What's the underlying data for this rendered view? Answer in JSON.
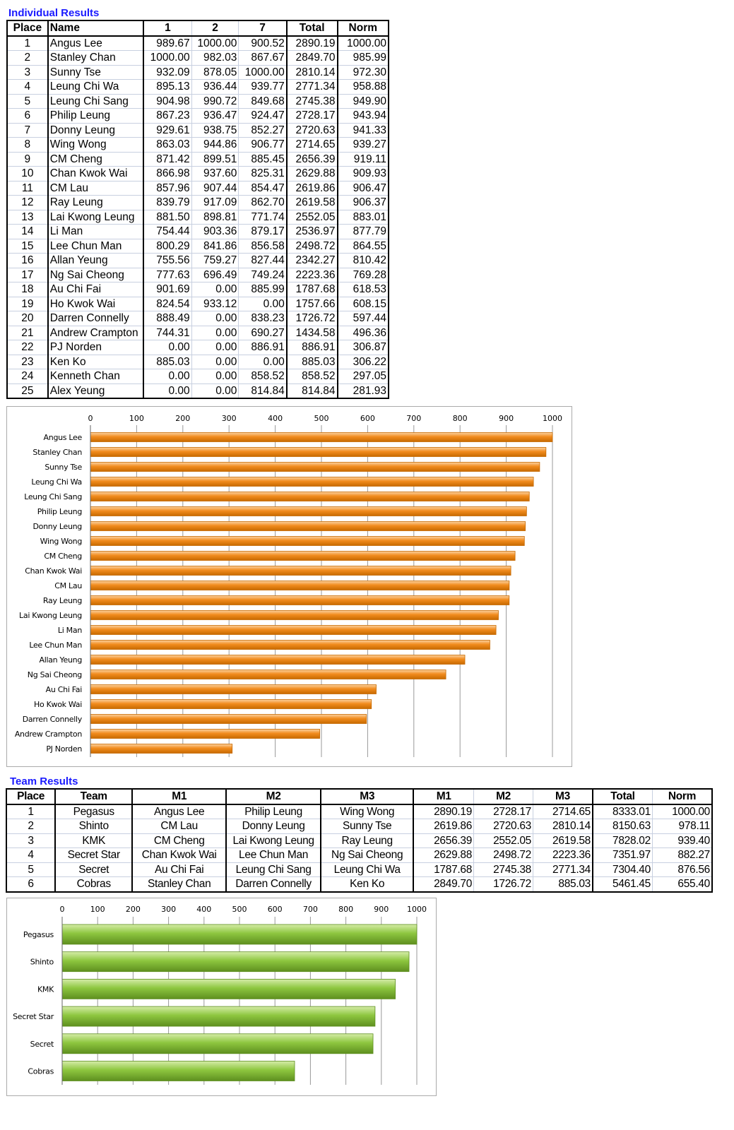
{
  "individual": {
    "title": "Individual Results",
    "headers": [
      "Place",
      "Name",
      "1",
      "2",
      "7",
      "Total",
      "Norm"
    ],
    "rows": [
      [
        "1",
        "Angus Lee",
        "989.67",
        "1000.00",
        "900.52",
        "2890.19",
        "1000.00"
      ],
      [
        "2",
        "Stanley Chan",
        "1000.00",
        "982.03",
        "867.67",
        "2849.70",
        "985.99"
      ],
      [
        "3",
        "Sunny Tse",
        "932.09",
        "878.05",
        "1000.00",
        "2810.14",
        "972.30"
      ],
      [
        "4",
        "Leung Chi Wa",
        "895.13",
        "936.44",
        "939.77",
        "2771.34",
        "958.88"
      ],
      [
        "5",
        "Leung Chi Sang",
        "904.98",
        "990.72",
        "849.68",
        "2745.38",
        "949.90"
      ],
      [
        "6",
        "Philip Leung",
        "867.23",
        "936.47",
        "924.47",
        "2728.17",
        "943.94"
      ],
      [
        "7",
        "Donny Leung",
        "929.61",
        "938.75",
        "852.27",
        "2720.63",
        "941.33"
      ],
      [
        "8",
        "Wing Wong",
        "863.03",
        "944.86",
        "906.77",
        "2714.65",
        "939.27"
      ],
      [
        "9",
        "CM Cheng",
        "871.42",
        "899.51",
        "885.45",
        "2656.39",
        "919.11"
      ],
      [
        "10",
        "Chan Kwok Wai",
        "866.98",
        "937.60",
        "825.31",
        "2629.88",
        "909.93"
      ],
      [
        "11",
        "CM Lau",
        "857.96",
        "907.44",
        "854.47",
        "2619.86",
        "906.47"
      ],
      [
        "12",
        "Ray Leung",
        "839.79",
        "917.09",
        "862.70",
        "2619.58",
        "906.37"
      ],
      [
        "13",
        "Lai Kwong Leung",
        "881.50",
        "898.81",
        "771.74",
        "2552.05",
        "883.01"
      ],
      [
        "14",
        "Li Man",
        "754.44",
        "903.36",
        "879.17",
        "2536.97",
        "877.79"
      ],
      [
        "15",
        "Lee Chun Man",
        "800.29",
        "841.86",
        "856.58",
        "2498.72",
        "864.55"
      ],
      [
        "16",
        "Allan Yeung",
        "755.56",
        "759.27",
        "827.44",
        "2342.27",
        "810.42"
      ],
      [
        "17",
        "Ng Sai Cheong",
        "777.63",
        "696.49",
        "749.24",
        "2223.36",
        "769.28"
      ],
      [
        "18",
        "Au Chi Fai",
        "901.69",
        "0.00",
        "885.99",
        "1787.68",
        "618.53"
      ],
      [
        "19",
        "Ho Kwok Wai",
        "824.54",
        "933.12",
        "0.00",
        "1757.66",
        "608.15"
      ],
      [
        "20",
        "Darren Connelly",
        "888.49",
        "0.00",
        "838.23",
        "1726.72",
        "597.44"
      ],
      [
        "21",
        "Andrew Crampton",
        "744.31",
        "0.00",
        "690.27",
        "1434.58",
        "496.36"
      ],
      [
        "22",
        "PJ Norden",
        "0.00",
        "0.00",
        "886.91",
        "886.91",
        "306.87"
      ],
      [
        "23",
        "Ken Ko",
        "885.03",
        "0.00",
        "0.00",
        "885.03",
        "306.22"
      ],
      [
        "24",
        "Kenneth Chan",
        "0.00",
        "0.00",
        "858.52",
        "858.52",
        "297.05"
      ],
      [
        "25",
        "Alex Yeung",
        "0.00",
        "0.00",
        "814.84",
        "814.84",
        "281.93"
      ]
    ]
  },
  "team": {
    "title": "Team Results",
    "headers": [
      "Place",
      "Team",
      "M1",
      "M2",
      "M3",
      "M1",
      "M2",
      "M3",
      "Total",
      "Norm"
    ],
    "rows": [
      [
        "1",
        "Pegasus",
        "Angus Lee",
        "Philip Leung",
        "Wing Wong",
        "2890.19",
        "2728.17",
        "2714.65",
        "8333.01",
        "1000.00"
      ],
      [
        "2",
        "Shinto",
        "CM Lau",
        "Donny Leung",
        "Sunny Tse",
        "2619.86",
        "2720.63",
        "2810.14",
        "8150.63",
        "978.11"
      ],
      [
        "3",
        "KMK",
        "CM Cheng",
        "Lai Kwong Leung",
        "Ray Leung",
        "2656.39",
        "2552.05",
        "2619.58",
        "7828.02",
        "939.40"
      ],
      [
        "4",
        "Secret Star",
        "Chan Kwok Wai",
        "Lee Chun Man",
        "Ng Sai Cheong",
        "2629.88",
        "2498.72",
        "2223.36",
        "7351.97",
        "882.27"
      ],
      [
        "5",
        "Secret",
        "Au Chi Fai",
        "Leung Chi Sang",
        "Leung Chi Wa",
        "1787.68",
        "2745.38",
        "2771.34",
        "7304.40",
        "876.56"
      ],
      [
        "6",
        "Cobras",
        "Stanley Chan",
        "Darren Connelly",
        "Ken Ko",
        "2849.70",
        "1726.72",
        "885.03",
        "5461.45",
        "655.40"
      ]
    ]
  },
  "chart_data": [
    {
      "type": "bar",
      "orientation": "horizontal",
      "color": "#f28c1e",
      "xlim": [
        0,
        1000
      ],
      "ticks": [
        "0",
        "100",
        "200",
        "300",
        "400",
        "500",
        "600",
        "700",
        "800",
        "900",
        "1000"
      ],
      "grid": true,
      "categories": [
        "Angus Lee",
        "Stanley Chan",
        "Sunny Tse",
        "Leung Chi Wa",
        "Leung Chi Sang",
        "Philip Leung",
        "Donny Leung",
        "Wing Wong",
        "CM Cheng",
        "Chan Kwok Wai",
        "CM Lau",
        "Ray Leung",
        "Lai Kwong Leung",
        "Li Man",
        "Lee Chun Man",
        "Allan Yeung",
        "Ng Sai Cheong",
        "Au Chi Fai",
        "Ho Kwok Wai",
        "Darren Connelly",
        "Andrew Crampton",
        "PJ Norden"
      ],
      "values": [
        1000.0,
        985.99,
        972.3,
        958.88,
        949.9,
        943.94,
        941.33,
        939.27,
        919.11,
        909.93,
        906.47,
        906.37,
        883.01,
        877.79,
        864.55,
        810.42,
        769.28,
        618.53,
        608.15,
        597.44,
        496.36,
        306.87
      ]
    },
    {
      "type": "bar",
      "orientation": "horizontal",
      "color": "#8dc63f",
      "xlim": [
        0,
        1000
      ],
      "ticks": [
        "0",
        "100",
        "200",
        "300",
        "400",
        "500",
        "600",
        "700",
        "800",
        "900",
        "1000"
      ],
      "grid": true,
      "categories": [
        "Pegasus",
        "Shinto",
        "KMK",
        "Secret Star",
        "Secret",
        "Cobras"
      ],
      "values": [
        1000.0,
        978.11,
        939.4,
        882.27,
        876.56,
        655.4
      ]
    }
  ]
}
